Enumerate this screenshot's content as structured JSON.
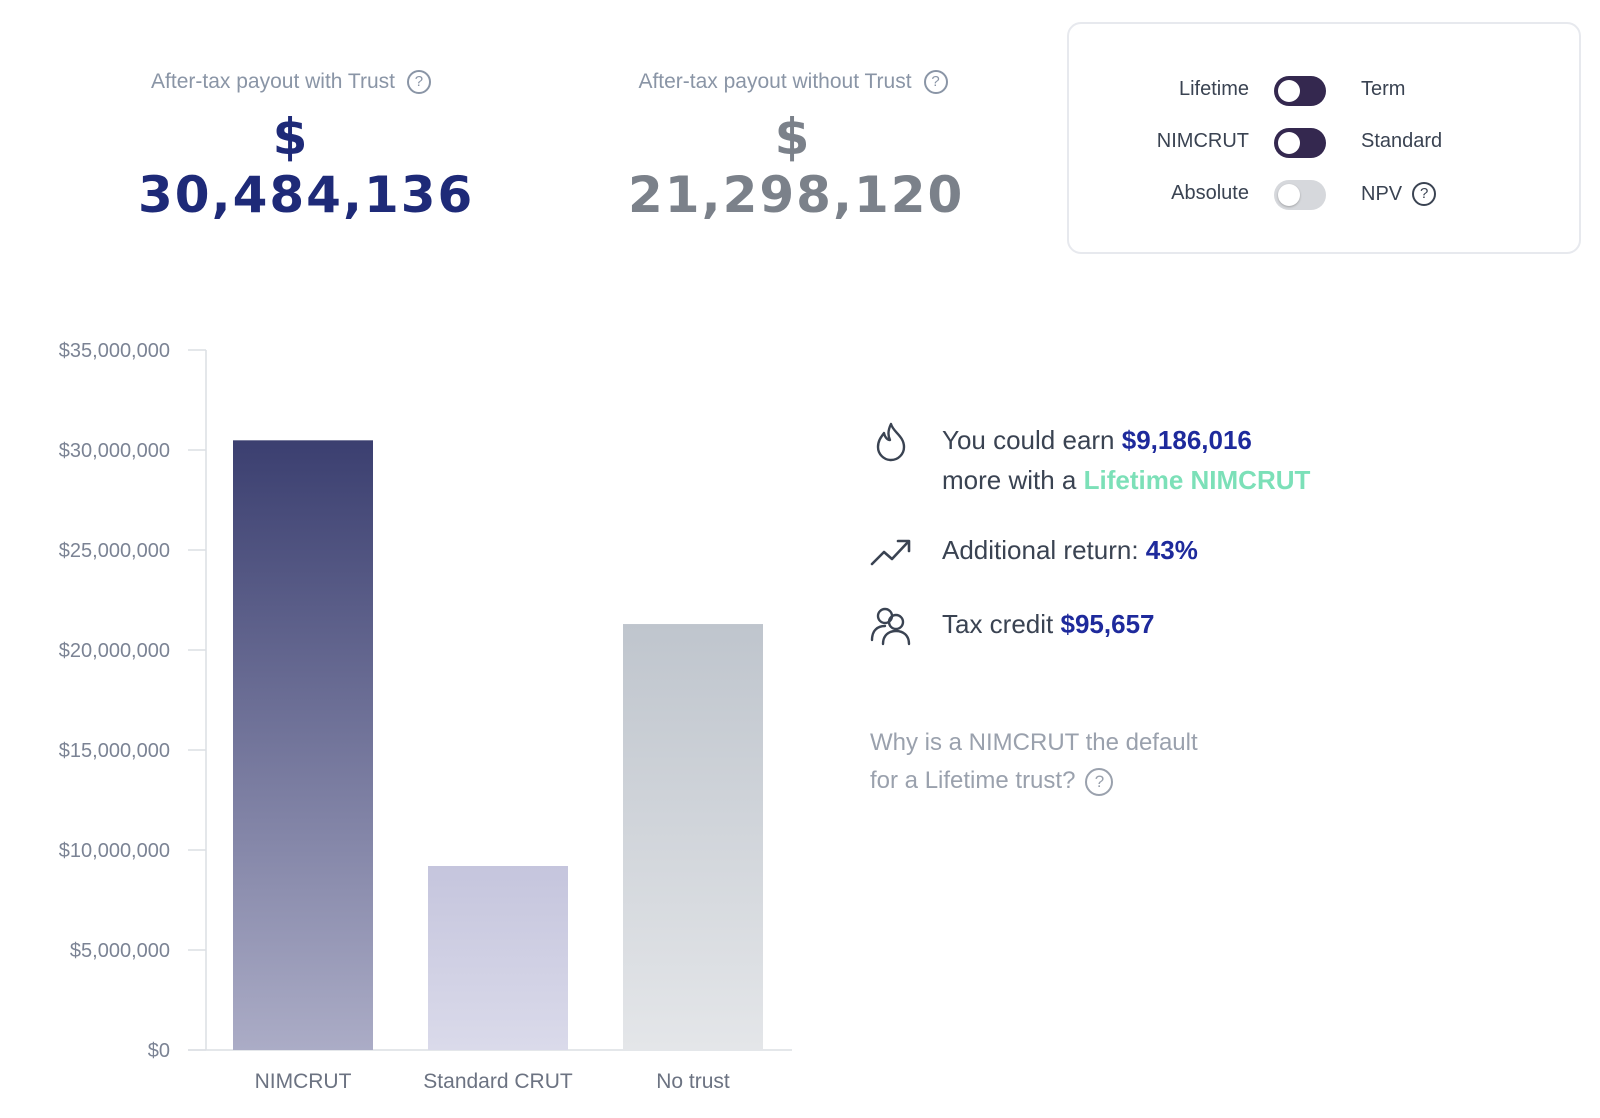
{
  "summary": {
    "with_trust": {
      "label": "After-tax payout with Trust",
      "value": "$ 30,484,136"
    },
    "without_trust": {
      "label": "After-tax payout without Trust",
      "value": "$ 21,298,120"
    }
  },
  "options": [
    {
      "left": "Lifetime",
      "right": "Term",
      "state": "on",
      "help": false
    },
    {
      "left": "NIMCRUT",
      "right": "Standard",
      "state": "on",
      "help": false
    },
    {
      "left": "Absolute",
      "right": "NPV",
      "state": "off",
      "help": true
    }
  ],
  "help_glyph": "?",
  "insights": {
    "earn_prefix": "You could earn ",
    "earn_amount": "$9,186,016",
    "earn_middle": "more with a ",
    "earn_product": "Lifetime NIMCRUT",
    "return_label": "Additional return: ",
    "return_value": "43%",
    "tax_label": "Tax credit ",
    "tax_value": "$95,657"
  },
  "faq": {
    "line1": "Why is a NIMCRUT the default",
    "line2": "for a Lifetime trust?"
  },
  "colors": {
    "accent": "#1e2a9c",
    "green": "#7ce0b8",
    "toggle_on": "#34284f"
  },
  "chart_data": {
    "type": "bar",
    "categories": [
      "NIMCRUT",
      "Standard CRUT",
      "No trust"
    ],
    "values": [
      30484136,
      9200000,
      21298120
    ],
    "ylim": [
      0,
      35000000
    ],
    "yticks": [
      0,
      5000000,
      10000000,
      15000000,
      20000000,
      25000000,
      30000000,
      35000000
    ],
    "ytick_labels": [
      "$0",
      "$5,000,000",
      "$10,000,000",
      "$15,000,000",
      "$20,000,000",
      "$25,000,000",
      "$30,000,000",
      "$35,000,000"
    ],
    "title": "",
    "xlabel": "",
    "ylabel": "",
    "grid": false
  }
}
